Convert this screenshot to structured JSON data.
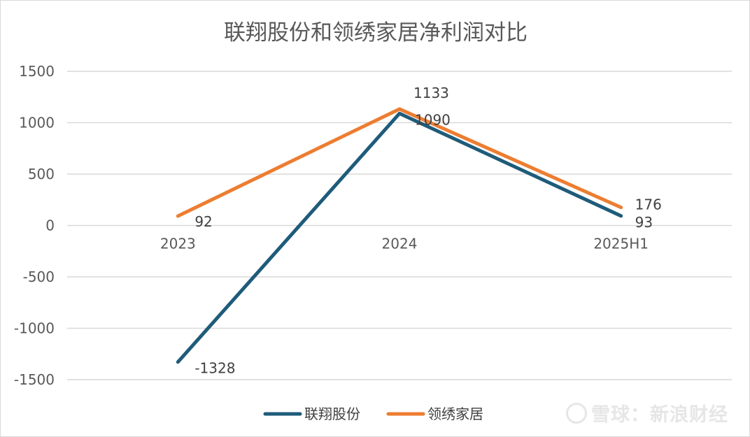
{
  "chart_data": {
    "type": "line",
    "title": "联翔股份和领绣家居净利润对比",
    "categories": [
      "2023",
      "2024",
      "2025H1"
    ],
    "series": [
      {
        "name": "联翔股份",
        "values": [
          -1328,
          1090,
          93
        ],
        "color": "#1f5b7a"
      },
      {
        "name": "领绣家居",
        "values": [
          92,
          1133,
          176
        ],
        "color": "#ed7d31"
      }
    ],
    "ylim": [
      -1500,
      1500
    ],
    "yticks": [
      1500,
      1000,
      500,
      0,
      -500,
      -1000,
      -1500
    ],
    "ytick_labels": [
      "1500",
      "1000",
      "500",
      "0",
      "-500",
      "-1000",
      "-1500"
    ],
    "grid": true,
    "legend": "bottom"
  },
  "watermark": {
    "text": "雪球：新浪财经",
    "icon": "snowball-logo-icon"
  }
}
